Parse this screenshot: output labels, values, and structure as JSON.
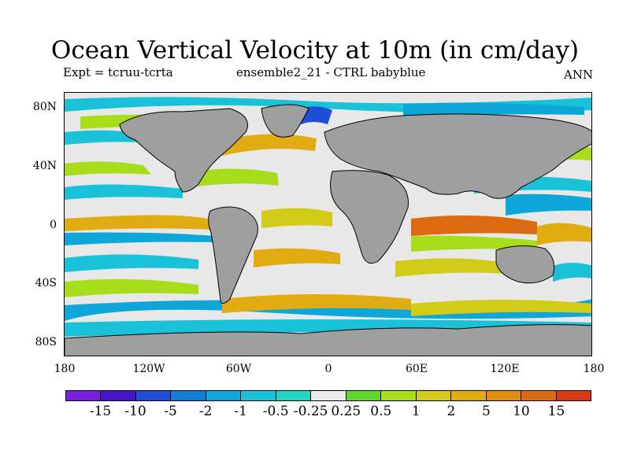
{
  "title": "Ocean Vertical Velocity at 10m (in cm/day)",
  "subtitle_left": "Expt = tcruu-tcrta",
  "subtitle_center": "ensemble2_21 - CTRL babyblue",
  "subtitle_right": "ANN",
  "lat_labels": [
    "80N",
    "40N",
    "0",
    "40S",
    "80S"
  ],
  "lon_labels": [
    "180",
    "120W",
    "60W",
    "0",
    "60E",
    "120E",
    "180"
  ],
  "colorbar": {
    "colors": [
      "#7a1fe0",
      "#4415c8",
      "#1e4fd6",
      "#0d7fd8",
      "#0fa6d9",
      "#19c2d8",
      "#22d6c6",
      "#ececec",
      "#5fd62a",
      "#a8dd1c",
      "#d2cc18",
      "#e0ac12",
      "#e08d0f",
      "#dc6a12",
      "#d83a14"
    ],
    "labels": [
      "-15",
      "-10",
      "-5",
      "-2",
      "-1",
      "-0.5",
      "-0.25",
      "0.25",
      "0.5",
      "1",
      "2",
      "5",
      "10",
      "15"
    ]
  },
  "land_color": "#9f9f9f"
}
